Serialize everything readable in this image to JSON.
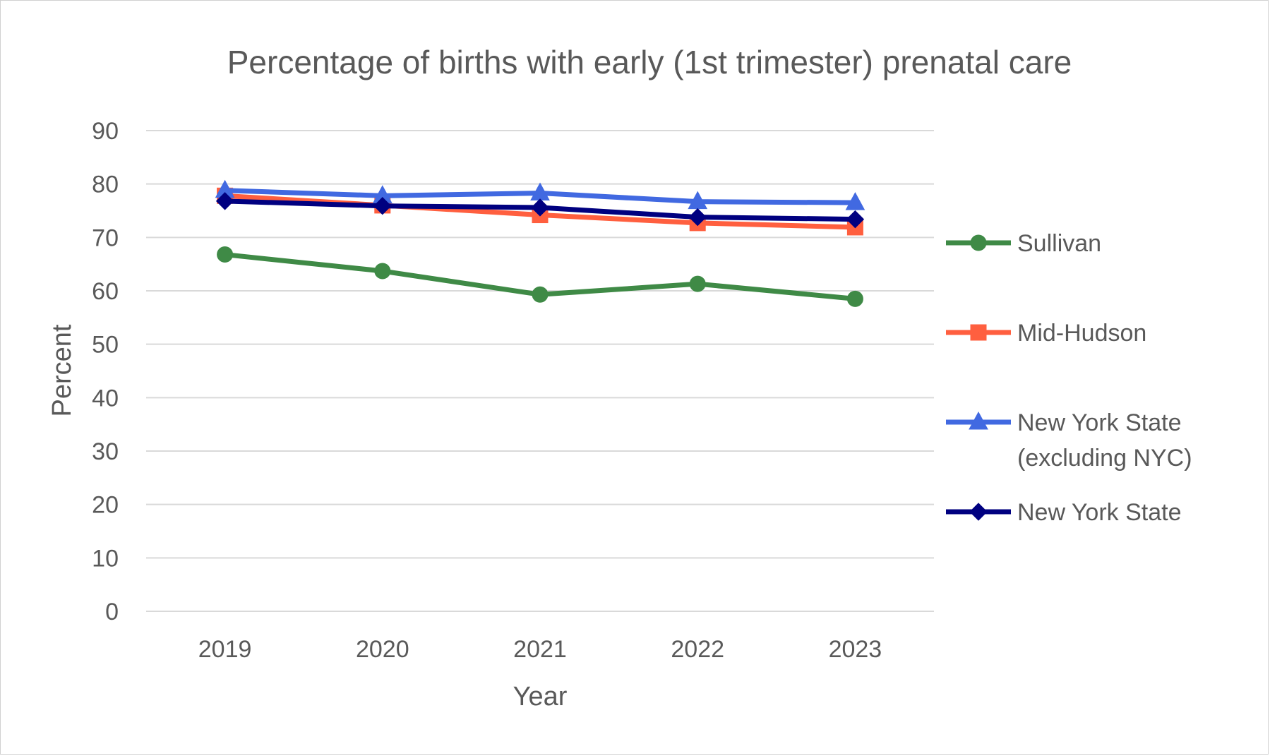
{
  "chart_data": {
    "type": "line",
    "title": "Percentage of births with early (1st trimester) prenatal care",
    "xlabel": "Year",
    "ylabel": "Percent",
    "categories": [
      "2019",
      "2020",
      "2021",
      "2022",
      "2023"
    ],
    "ylim": [
      0,
      90
    ],
    "yticks": [
      0,
      10,
      20,
      30,
      40,
      50,
      60,
      70,
      80,
      90
    ],
    "grid": true,
    "legend_position": "right",
    "series": [
      {
        "name": "Sullivan",
        "values": [
          66.8,
          63.7,
          59.3,
          61.3,
          58.5
        ],
        "color": "#3f8a46",
        "marker": "circle"
      },
      {
        "name": "Mid-Hudson",
        "values": [
          77.8,
          76.0,
          74.2,
          72.7,
          71.9
        ],
        "color": "#ff5f3f",
        "marker": "square"
      },
      {
        "name": "New York State (excluding NYC)",
        "legend_lines": [
          "New York State",
          "(excluding NYC)"
        ],
        "values": [
          78.8,
          77.8,
          78.3,
          76.7,
          76.5
        ],
        "color": "#4169e1",
        "marker": "triangle"
      },
      {
        "name": "New York State",
        "values": [
          76.8,
          75.9,
          75.6,
          73.8,
          73.4
        ],
        "color": "#000080",
        "marker": "diamond"
      }
    ]
  }
}
